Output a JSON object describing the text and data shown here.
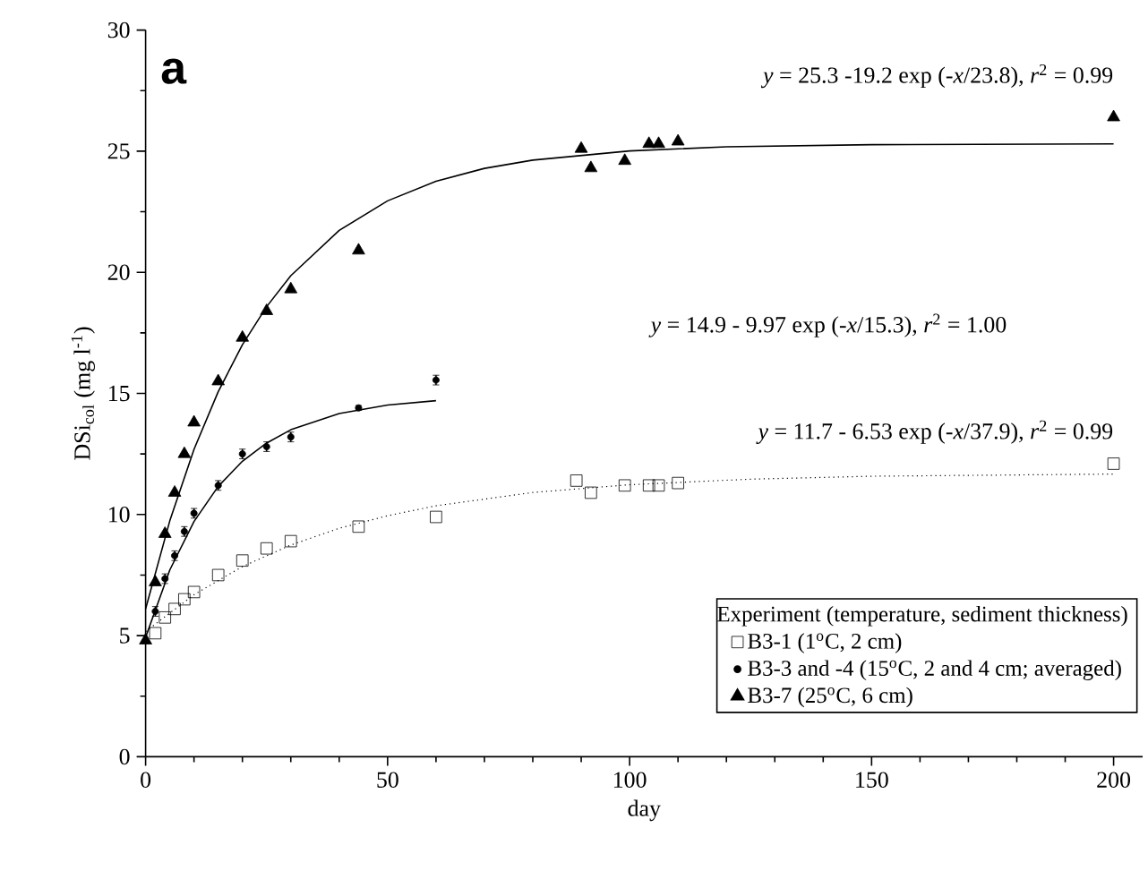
{
  "chart_data": {
    "type": "scatter",
    "xlabel": "day",
    "ylabel": "DSi$_{col}$ (mg l$^{-1}$)",
    "legend_title": "Experiment (temperature, sediment thickness)",
    "annotations": [
      "a",
      "*y* = 25.3 -19.2 exp (-*x*/23.8), *r*$^{2}$ = 0.99",
      "*y* = 14.9 - 9.97 exp (-*x*/15.3), *r*$^{2}$ = 1.00",
      "*y* = 11.7 - 6.53 exp (-*x*/37.9), *r*$^{2}$ = 0.99"
    ],
    "xlim": [
      0,
      206
    ],
    "ylim": [
      0,
      30
    ],
    "xticks": [
      0,
      50,
      100,
      150,
      200
    ],
    "yticks": [
      0,
      5,
      10,
      15,
      20,
      25,
      30
    ],
    "legend": "bottom right",
    "series": [
      {
        "name": "B3-1 (1$^{o}$C, 2 cm)",
        "marker": "square",
        "color": "#000000",
        "x": [
          2,
          4,
          6,
          8,
          10,
          15,
          20,
          25,
          30,
          44,
          60,
          89,
          92,
          99,
          104,
          106,
          110,
          200
        ],
        "values": [
          5.1,
          5.75,
          6.1,
          6.5,
          6.8,
          7.5,
          8.1,
          8.6,
          8.9,
          9.5,
          9.9,
          11.4,
          10.9,
          11.2,
          11.2,
          11.2,
          11.3,
          12.1
        ]
      },
      {
        "name": "B3-3 and -4 (15$^{o}$C, 2 and 4 cm; averaged)",
        "marker": "circle",
        "color": "#000000",
        "x": [
          2,
          4,
          6,
          8,
          10,
          15,
          20,
          25,
          30,
          44,
          60
        ],
        "values": [
          6.0,
          7.35,
          8.3,
          9.3,
          10.05,
          11.2,
          12.5,
          12.8,
          13.2,
          14.4,
          15.55
        ],
        "errors": [
          0.2,
          0.2,
          0.2,
          0.2,
          0.2,
          0.2,
          0.2,
          0.2,
          0.2,
          0.1,
          0.2
        ]
      },
      {
        "name": "B3-7 (25$^{o}$C, 6 cm)",
        "marker": "triangle",
        "color": "#000000",
        "x": [
          0,
          2,
          4,
          6,
          8,
          10,
          15,
          20,
          25,
          30,
          44,
          90,
          92,
          99,
          104,
          106,
          110,
          200
        ],
        "values": [
          4.8,
          7.2,
          9.2,
          10.9,
          12.5,
          13.8,
          15.5,
          17.3,
          18.4,
          19.3,
          20.9,
          25.1,
          24.3,
          24.6,
          25.3,
          25.3,
          25.4,
          26.4
        ]
      },
      {
        "type": "line",
        "line_style": "dotted",
        "color": "#000000",
        "x": [
          0,
          10,
          20,
          30,
          40,
          50,
          60,
          80,
          100,
          125,
          150,
          200
        ],
        "values": [
          5.17,
          6.69,
          7.85,
          8.74,
          9.43,
          9.95,
          10.36,
          10.91,
          11.23,
          11.46,
          11.58,
          11.67
        ]
      },
      {
        "type": "line",
        "line_style": "solid",
        "color": "#000000",
        "x": [
          0,
          5,
          10,
          15,
          20,
          25,
          30,
          40,
          50,
          60
        ],
        "values": [
          4.93,
          7.71,
          9.71,
          11.16,
          12.2,
          12.95,
          13.5,
          14.17,
          14.52,
          14.7
        ]
      },
      {
        "type": "line",
        "line_style": "solid",
        "color": "#000000",
        "x": [
          0,
          5,
          10,
          15,
          20,
          25,
          30,
          40,
          50,
          60,
          70,
          80,
          100,
          120,
          150,
          200
        ],
        "values": [
          6.1,
          9.74,
          12.69,
          15.07,
          17.01,
          18.58,
          19.86,
          21.73,
          22.95,
          23.76,
          24.29,
          24.63,
          25.01,
          25.18,
          25.27,
          25.3
        ]
      }
    ]
  }
}
